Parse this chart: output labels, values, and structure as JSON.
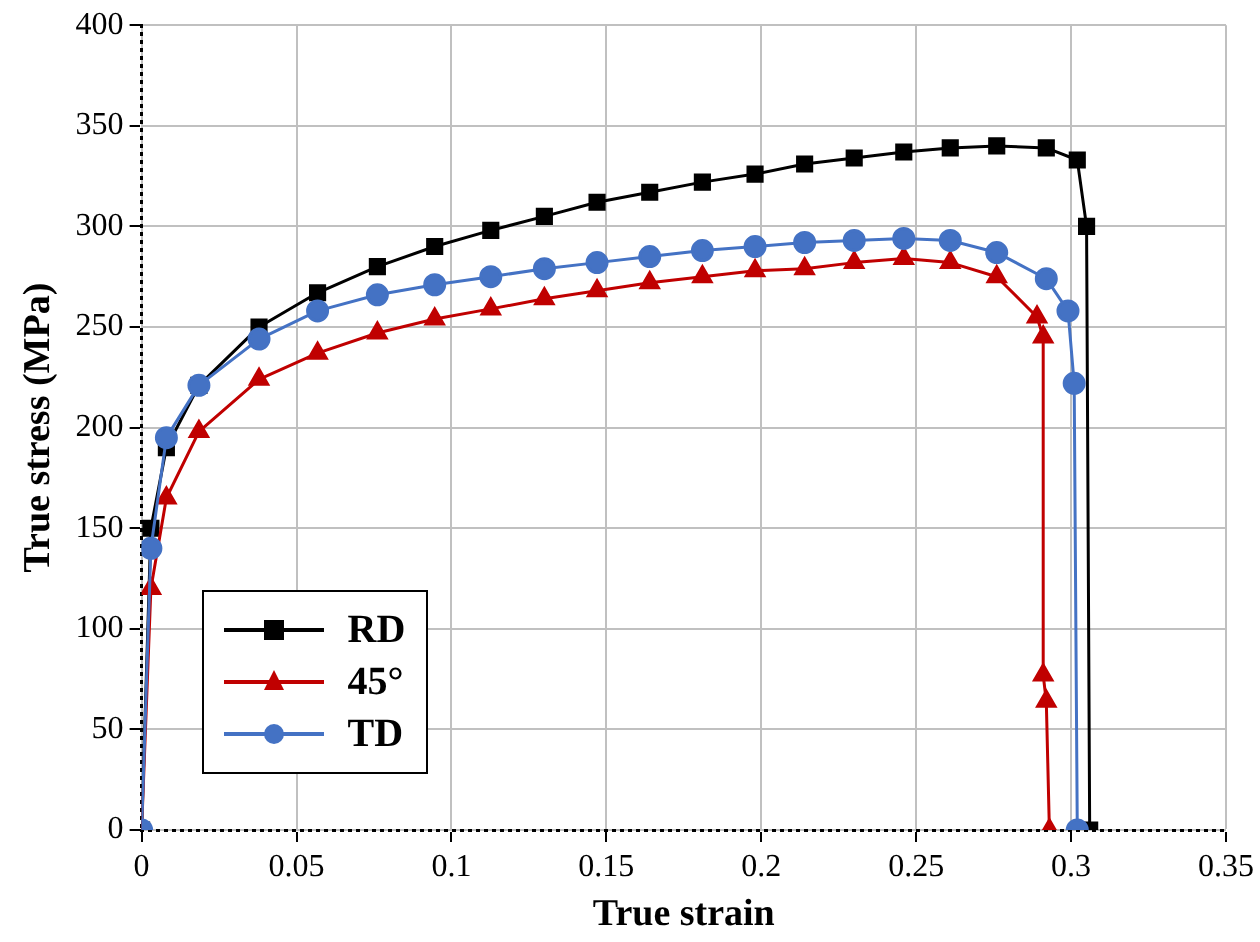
{
  "chart_data": {
    "type": "line",
    "xlabel": "True strain",
    "ylabel": "True stress (MPa)",
    "xlim": [
      0,
      0.35
    ],
    "xticks": [
      0,
      0.05,
      0.1,
      0.15,
      0.2,
      0.25,
      0.3,
      0.35
    ],
    "ylim": [
      0,
      400
    ],
    "yticks": [
      0,
      50,
      100,
      150,
      200,
      250,
      300,
      350,
      400
    ],
    "grid": true,
    "legend": "bottom left",
    "line_style": "solid",
    "series": [
      {
        "name": "RD",
        "color": "#000000",
        "marker": "square",
        "x": [
          0,
          0.003,
          0.008,
          0.0185,
          0.0379,
          0.0568,
          0.0761,
          0.0946,
          0.1127,
          0.13,
          0.147,
          0.164,
          0.181,
          0.198,
          0.214,
          0.23,
          0.246,
          0.261,
          0.276,
          0.292,
          0.302,
          0.305,
          0.306
        ],
        "values": [
          0,
          150,
          190,
          221,
          250,
          267,
          280,
          290,
          298,
          305,
          312,
          317,
          322,
          326,
          331,
          334,
          337,
          339,
          340,
          339,
          333,
          300,
          0
        ]
      },
      {
        "name": "45°",
        "color": "#c00000",
        "marker": "triangle",
        "x": [
          0,
          0.003,
          0.008,
          0.0185,
          0.0379,
          0.0568,
          0.0761,
          0.0946,
          0.1127,
          0.13,
          0.147,
          0.164,
          0.181,
          0.198,
          0.214,
          0.23,
          0.246,
          0.261,
          0.276,
          0.289,
          0.291,
          0.291,
          0.292,
          0.293
        ],
        "values": [
          0,
          120,
          165,
          198,
          224,
          237,
          247,
          254,
          259,
          264,
          268,
          272,
          275,
          278,
          279,
          282,
          284,
          282,
          275,
          255,
          245,
          77,
          64,
          0
        ]
      },
      {
        "name": "TD",
        "color": "#4472c4",
        "marker": "circle",
        "x": [
          0,
          0.003,
          0.008,
          0.0185,
          0.0379,
          0.0568,
          0.0761,
          0.0946,
          0.1127,
          0.13,
          0.147,
          0.164,
          0.181,
          0.198,
          0.214,
          0.23,
          0.246,
          0.261,
          0.276,
          0.292,
          0.299,
          0.301,
          0.302
        ],
        "values": [
          0,
          140,
          195,
          221,
          244,
          258,
          266,
          271,
          275,
          279,
          282,
          285,
          288,
          290,
          292,
          293,
          294,
          293,
          287,
          274,
          258,
          222,
          0
        ]
      }
    ]
  }
}
